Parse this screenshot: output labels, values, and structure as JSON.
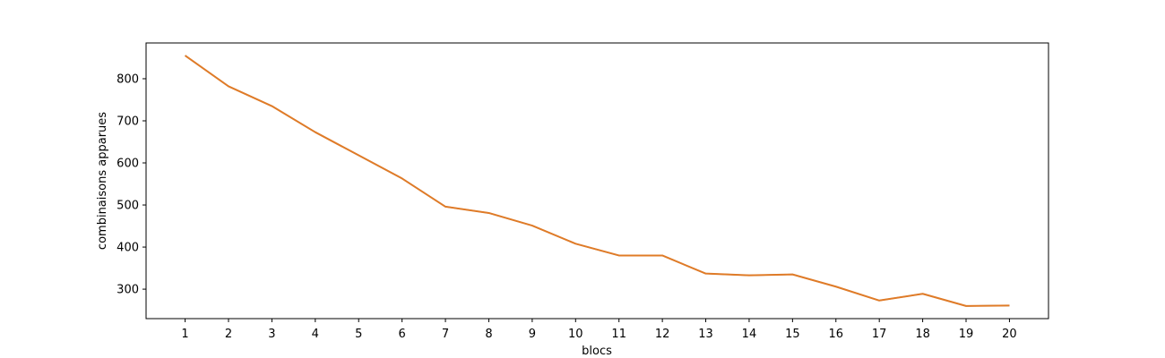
{
  "chart_data": {
    "type": "line",
    "title": "",
    "xlabel": "blocs",
    "ylabel": "combinaisons apparues",
    "x": [
      1,
      2,
      3,
      4,
      5,
      6,
      7,
      8,
      9,
      10,
      11,
      12,
      13,
      14,
      15,
      16,
      17,
      18,
      19,
      20
    ],
    "x_tick_labels": [
      "1",
      "2",
      "3",
      "4",
      "5",
      "6",
      "7",
      "8",
      "9",
      "10",
      "11",
      "12",
      "13",
      "14",
      "15",
      "16",
      "17",
      "18",
      "19",
      "20"
    ],
    "y_ticks": [
      300,
      400,
      500,
      600,
      700,
      800
    ],
    "y_tick_labels": [
      "300",
      "400",
      "500",
      "600",
      "700",
      "800"
    ],
    "xlim": [
      0.1,
      20.9
    ],
    "ylim": [
      230,
      885
    ],
    "grid": false,
    "series": [
      {
        "color": "#e07b27",
        "values": [
          855,
          782,
          735,
          673,
          618,
          563,
          496,
          481,
          451,
          408,
          380,
          380,
          337,
          333,
          335,
          306,
          273,
          289,
          260,
          261
        ]
      },
      {
        "color": "#2f77b4",
        "values": [
          855,
          782,
          735,
          673,
          618,
          563,
          496,
          481,
          451,
          408,
          380,
          380,
          337,
          333,
          335,
          306,
          273,
          289,
          260,
          261
        ]
      }
    ]
  }
}
